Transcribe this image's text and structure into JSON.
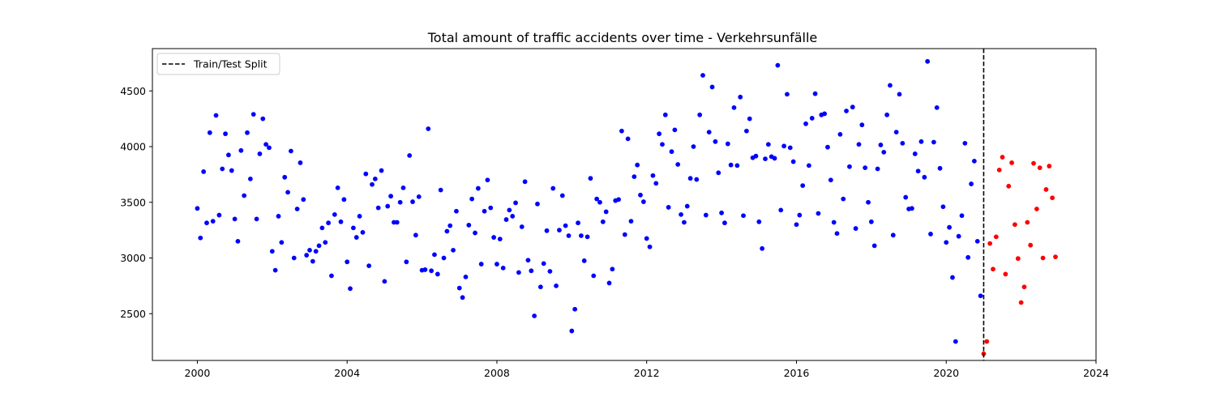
{
  "chart_data": {
    "type": "scatter",
    "title": "Total amount of traffic accidents over time - Verkehrsunfälle",
    "xlabel": "",
    "ylabel": "",
    "xlim": [
      1998.8,
      2024.0
    ],
    "ylim": [
      2080,
      4880
    ],
    "x_ticks": [
      2000,
      2004,
      2008,
      2012,
      2016,
      2020,
      2024
    ],
    "x_tick_labels": [
      "2000",
      "2004",
      "2008",
      "2012",
      "2016",
      "2020",
      "2024"
    ],
    "y_ticks": [
      2500,
      3000,
      3500,
      4000,
      4500
    ],
    "y_tick_labels": [
      "2500",
      "3000",
      "3500",
      "4000",
      "4500"
    ],
    "grid": false,
    "legend": {
      "position": "top-left",
      "entries": [
        "Train/Test Split"
      ]
    },
    "split_line": {
      "x": 2021.0,
      "label": "Train/Test Split",
      "color": "#000000",
      "style": "dashed"
    },
    "colors": {
      "train": "#0000ff",
      "test": "#ff0000"
    },
    "series": [
      {
        "color": "#0000ff",
        "points": [
          [
            2000.0,
            3445
          ],
          [
            2000.083,
            3180
          ],
          [
            2000.167,
            3775
          ],
          [
            2000.25,
            3315
          ],
          [
            2000.333,
            4125
          ],
          [
            2000.417,
            3330
          ],
          [
            2000.5,
            4280
          ],
          [
            2000.583,
            3385
          ],
          [
            2000.667,
            3800
          ],
          [
            2000.75,
            4115
          ],
          [
            2000.833,
            3925
          ],
          [
            2000.917,
            3785
          ],
          [
            2001.0,
            3350
          ],
          [
            2001.083,
            3150
          ],
          [
            2001.167,
            3965
          ],
          [
            2001.25,
            3560
          ],
          [
            2001.333,
            4125
          ],
          [
            2001.417,
            3710
          ],
          [
            2001.5,
            4290
          ],
          [
            2001.583,
            3350
          ],
          [
            2001.667,
            3935
          ],
          [
            2001.75,
            4250
          ],
          [
            2001.833,
            4020
          ],
          [
            2001.917,
            3990
          ],
          [
            2002.0,
            3060
          ],
          [
            2002.083,
            2890
          ],
          [
            2002.167,
            3375
          ],
          [
            2002.25,
            3140
          ],
          [
            2002.333,
            3725
          ],
          [
            2002.417,
            3590
          ],
          [
            2002.5,
            3960
          ],
          [
            2002.583,
            3000
          ],
          [
            2002.667,
            3440
          ],
          [
            2002.75,
            3855
          ],
          [
            2002.833,
            3525
          ],
          [
            2002.917,
            3025
          ],
          [
            2003.0,
            3070
          ],
          [
            2003.083,
            2970
          ],
          [
            2003.167,
            3060
          ],
          [
            2003.25,
            3110
          ],
          [
            2003.333,
            3270
          ],
          [
            2003.417,
            3140
          ],
          [
            2003.5,
            3315
          ],
          [
            2003.583,
            2840
          ],
          [
            2003.667,
            3390
          ],
          [
            2003.75,
            3630
          ],
          [
            2003.833,
            3325
          ],
          [
            2003.917,
            3525
          ],
          [
            2004.0,
            2965
          ],
          [
            2004.083,
            2725
          ],
          [
            2004.167,
            3270
          ],
          [
            2004.25,
            3185
          ],
          [
            2004.333,
            3375
          ],
          [
            2004.417,
            3230
          ],
          [
            2004.5,
            3755
          ],
          [
            2004.583,
            2930
          ],
          [
            2004.667,
            3660
          ],
          [
            2004.75,
            3710
          ],
          [
            2004.833,
            3450
          ],
          [
            2004.917,
            3785
          ],
          [
            2005.0,
            2790
          ],
          [
            2005.083,
            3465
          ],
          [
            2005.167,
            3555
          ],
          [
            2005.25,
            3320
          ],
          [
            2005.333,
            3320
          ],
          [
            2005.417,
            3500
          ],
          [
            2005.5,
            3630
          ],
          [
            2005.583,
            2965
          ],
          [
            2005.667,
            3920
          ],
          [
            2005.75,
            3505
          ],
          [
            2005.833,
            3205
          ],
          [
            2005.917,
            3550
          ],
          [
            2006.0,
            2890
          ],
          [
            2006.083,
            2895
          ],
          [
            2006.167,
            4160
          ],
          [
            2006.25,
            2885
          ],
          [
            2006.333,
            3030
          ],
          [
            2006.417,
            2855
          ],
          [
            2006.5,
            3610
          ],
          [
            2006.583,
            3000
          ],
          [
            2006.667,
            3240
          ],
          [
            2006.75,
            3290
          ],
          [
            2006.833,
            3070
          ],
          [
            2006.917,
            3420
          ],
          [
            2007.0,
            2730
          ],
          [
            2007.083,
            2645
          ],
          [
            2007.167,
            2830
          ],
          [
            2007.25,
            3295
          ],
          [
            2007.333,
            3530
          ],
          [
            2007.417,
            3225
          ],
          [
            2007.5,
            3625
          ],
          [
            2007.583,
            2945
          ],
          [
            2007.667,
            3420
          ],
          [
            2007.75,
            3700
          ],
          [
            2007.833,
            3450
          ],
          [
            2007.917,
            3185
          ],
          [
            2008.0,
            2945
          ],
          [
            2008.083,
            3170
          ],
          [
            2008.167,
            2910
          ],
          [
            2008.25,
            3345
          ],
          [
            2008.333,
            3430
          ],
          [
            2008.417,
            3375
          ],
          [
            2008.5,
            3495
          ],
          [
            2008.583,
            2870
          ],
          [
            2008.667,
            3280
          ],
          [
            2008.75,
            3685
          ],
          [
            2008.833,
            2980
          ],
          [
            2008.917,
            2885
          ],
          [
            2009.0,
            2480
          ],
          [
            2009.083,
            3485
          ],
          [
            2009.167,
            2740
          ],
          [
            2009.25,
            2950
          ],
          [
            2009.333,
            3245
          ],
          [
            2009.417,
            2880
          ],
          [
            2009.5,
            3625
          ],
          [
            2009.583,
            2750
          ],
          [
            2009.667,
            3250
          ],
          [
            2009.75,
            3560
          ],
          [
            2009.833,
            3290
          ],
          [
            2009.917,
            3200
          ],
          [
            2010.0,
            2345
          ],
          [
            2010.083,
            2540
          ],
          [
            2010.167,
            3315
          ],
          [
            2010.25,
            3200
          ],
          [
            2010.333,
            2975
          ],
          [
            2010.417,
            3190
          ],
          [
            2010.5,
            3715
          ],
          [
            2010.583,
            2840
          ],
          [
            2010.667,
            3530
          ],
          [
            2010.75,
            3500
          ],
          [
            2010.833,
            3325
          ],
          [
            2010.917,
            3415
          ],
          [
            2011.0,
            2775
          ],
          [
            2011.083,
            2900
          ],
          [
            2011.167,
            3515
          ],
          [
            2011.25,
            3525
          ],
          [
            2011.333,
            4140
          ],
          [
            2011.417,
            3210
          ],
          [
            2011.5,
            4070
          ],
          [
            2011.583,
            3330
          ],
          [
            2011.667,
            3730
          ],
          [
            2011.75,
            3835
          ],
          [
            2011.833,
            3565
          ],
          [
            2011.917,
            3505
          ],
          [
            2012.0,
            3175
          ],
          [
            2012.083,
            3100
          ],
          [
            2012.167,
            3740
          ],
          [
            2012.25,
            3670
          ],
          [
            2012.333,
            4115
          ],
          [
            2012.417,
            4020
          ],
          [
            2012.5,
            4285
          ],
          [
            2012.583,
            3455
          ],
          [
            2012.667,
            3955
          ],
          [
            2012.75,
            4150
          ],
          [
            2012.833,
            3840
          ],
          [
            2012.917,
            3390
          ],
          [
            2013.0,
            3320
          ],
          [
            2013.083,
            3465
          ],
          [
            2013.167,
            3715
          ],
          [
            2013.25,
            4000
          ],
          [
            2013.333,
            3705
          ],
          [
            2013.417,
            4285
          ],
          [
            2013.5,
            4640
          ],
          [
            2013.583,
            3385
          ],
          [
            2013.667,
            4130
          ],
          [
            2013.75,
            4535
          ],
          [
            2013.833,
            4045
          ],
          [
            2013.917,
            3765
          ],
          [
            2014.0,
            3405
          ],
          [
            2014.083,
            3315
          ],
          [
            2014.167,
            4025
          ],
          [
            2014.25,
            3835
          ],
          [
            2014.333,
            4350
          ],
          [
            2014.417,
            3830
          ],
          [
            2014.5,
            4445
          ],
          [
            2014.583,
            3380
          ],
          [
            2014.667,
            4140
          ],
          [
            2014.75,
            4250
          ],
          [
            2014.833,
            3900
          ],
          [
            2014.917,
            3915
          ],
          [
            2015.0,
            3325
          ],
          [
            2015.083,
            3085
          ],
          [
            2015.167,
            3890
          ],
          [
            2015.25,
            4020
          ],
          [
            2015.333,
            3910
          ],
          [
            2015.417,
            3895
          ],
          [
            2015.5,
            4730
          ],
          [
            2015.583,
            3430
          ],
          [
            2015.667,
            4005
          ],
          [
            2015.75,
            4470
          ],
          [
            2015.833,
            3990
          ],
          [
            2015.917,
            3865
          ],
          [
            2016.0,
            3300
          ],
          [
            2016.083,
            3385
          ],
          [
            2016.167,
            3650
          ],
          [
            2016.25,
            4205
          ],
          [
            2016.333,
            3830
          ],
          [
            2016.417,
            4255
          ],
          [
            2016.5,
            4475
          ],
          [
            2016.583,
            3400
          ],
          [
            2016.667,
            4285
          ],
          [
            2016.75,
            4295
          ],
          [
            2016.833,
            3995
          ],
          [
            2016.917,
            3700
          ],
          [
            2017.0,
            3320
          ],
          [
            2017.083,
            3220
          ],
          [
            2017.167,
            4110
          ],
          [
            2017.25,
            3530
          ],
          [
            2017.333,
            4320
          ],
          [
            2017.417,
            3820
          ],
          [
            2017.5,
            4355
          ],
          [
            2017.583,
            3265
          ],
          [
            2017.667,
            4020
          ],
          [
            2017.75,
            4195
          ],
          [
            2017.833,
            3810
          ],
          [
            2017.917,
            3500
          ],
          [
            2018.0,
            3325
          ],
          [
            2018.083,
            3110
          ],
          [
            2018.167,
            3800
          ],
          [
            2018.25,
            4015
          ],
          [
            2018.333,
            3950
          ],
          [
            2018.417,
            4285
          ],
          [
            2018.5,
            4550
          ],
          [
            2018.583,
            3205
          ],
          [
            2018.667,
            4130
          ],
          [
            2018.75,
            4470
          ],
          [
            2018.833,
            4030
          ],
          [
            2018.917,
            3545
          ],
          [
            2019.0,
            3440
          ],
          [
            2019.083,
            3445
          ],
          [
            2019.167,
            3935
          ],
          [
            2019.25,
            3780
          ],
          [
            2019.333,
            4045
          ],
          [
            2019.417,
            3725
          ],
          [
            2019.5,
            4765
          ],
          [
            2019.583,
            3215
          ],
          [
            2019.667,
            4040
          ],
          [
            2019.75,
            4350
          ],
          [
            2019.833,
            3805
          ],
          [
            2019.917,
            3460
          ],
          [
            2020.0,
            3140
          ],
          [
            2020.083,
            3275
          ],
          [
            2020.167,
            2825
          ],
          [
            2020.25,
            2250
          ],
          [
            2020.333,
            3195
          ],
          [
            2020.417,
            3380
          ],
          [
            2020.5,
            4030
          ],
          [
            2020.583,
            3005
          ],
          [
            2020.667,
            3665
          ],
          [
            2020.75,
            3870
          ],
          [
            2020.833,
            3150
          ],
          [
            2020.917,
            2660
          ]
        ]
      },
      {
        "color": "#ff0000",
        "points": [
          [
            2021.0,
            2140
          ],
          [
            2021.083,
            2250
          ],
          [
            2021.167,
            3130
          ],
          [
            2021.25,
            2900
          ],
          [
            2021.333,
            3190
          ],
          [
            2021.417,
            3790
          ],
          [
            2021.5,
            3905
          ],
          [
            2021.583,
            2855
          ],
          [
            2021.667,
            3645
          ],
          [
            2021.75,
            3855
          ],
          [
            2021.833,
            3300
          ],
          [
            2021.917,
            2995
          ],
          [
            2022.0,
            2600
          ],
          [
            2022.083,
            2740
          ],
          [
            2022.167,
            3320
          ],
          [
            2022.25,
            3115
          ],
          [
            2022.333,
            3850
          ],
          [
            2022.417,
            3440
          ],
          [
            2022.5,
            3810
          ],
          [
            2022.583,
            3000
          ],
          [
            2022.667,
            3615
          ],
          [
            2022.75,
            3825
          ],
          [
            2022.833,
            3540
          ],
          [
            2022.917,
            3010
          ]
        ]
      }
    ]
  }
}
